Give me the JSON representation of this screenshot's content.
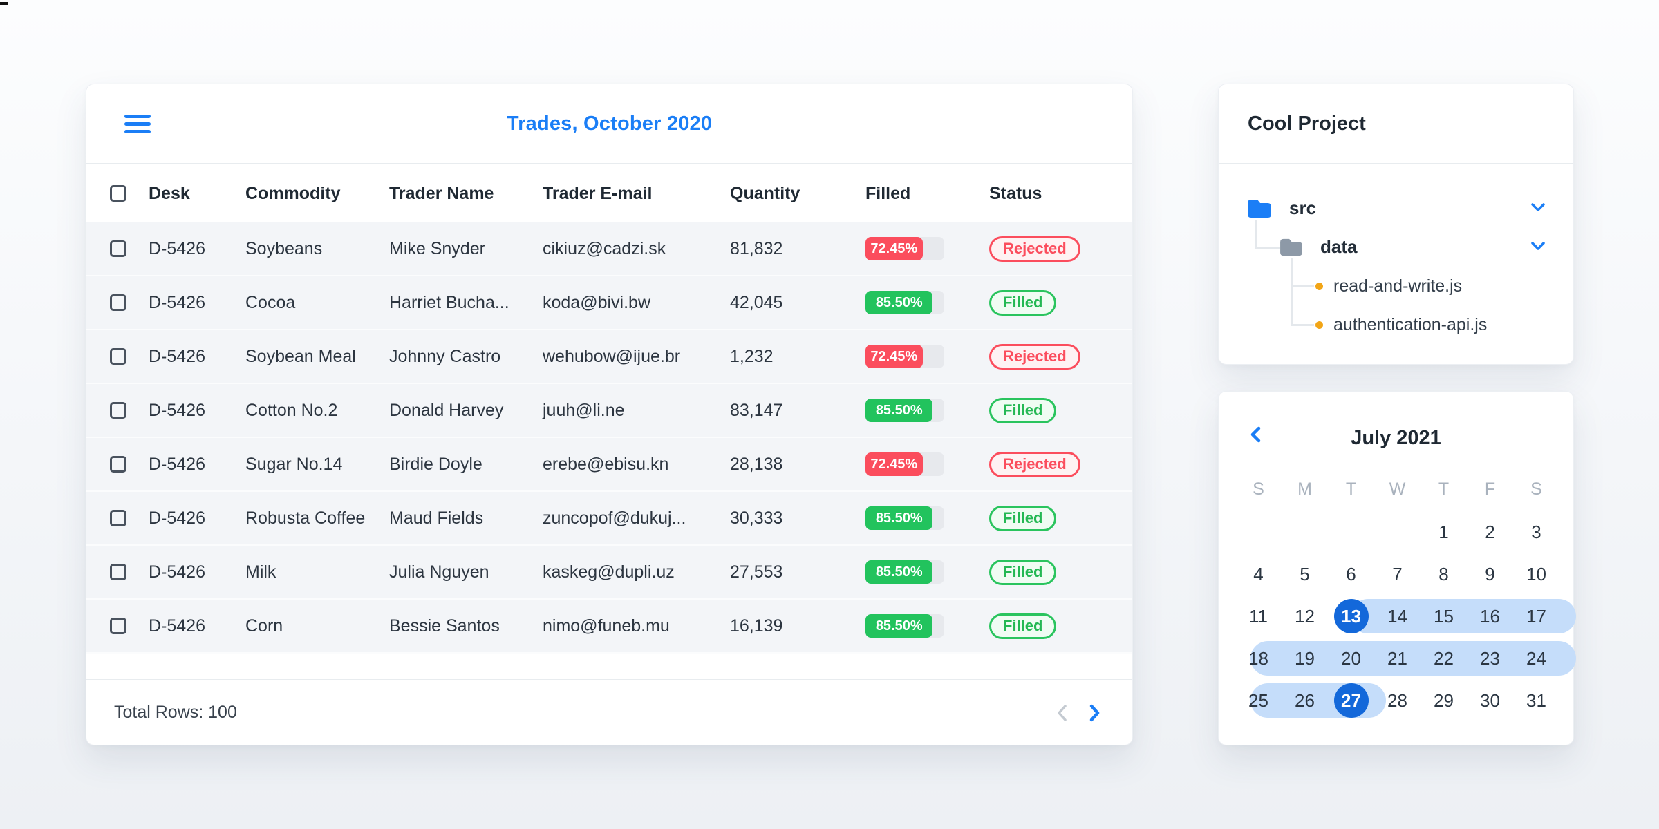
{
  "colors": {
    "accent_blue": "#1b7ef6",
    "selected_day_blue": "#1368da",
    "range_band_blue": "#c5ddfa",
    "progress_green": "#22c35d",
    "progress_red": "#fb4d5d",
    "row_background": "#f3f5f8"
  },
  "table": {
    "title": "Trades, October 2020",
    "columns": {
      "desk": "Desk",
      "commodity": "Commodity",
      "trader": "Trader Name",
      "email": "Trader E-mail",
      "quantity": "Quantity",
      "filled": "Filled",
      "status": "Status"
    },
    "rows": [
      {
        "desk": "D-5426",
        "commodity": "Soybeans",
        "trader": "Mike Snyder",
        "email": "cikiuz@cadzi.sk",
        "quantity": "81,832",
        "filled_pct": 72.45,
        "filled_label": "72.45%",
        "status": "Rejected"
      },
      {
        "desk": "D-5426",
        "commodity": "Cocoa",
        "trader": "Harriet Bucha...",
        "email": "koda@bivi.bw",
        "quantity": "42,045",
        "filled_pct": 85.5,
        "filled_label": "85.50%",
        "status": "Filled"
      },
      {
        "desk": "D-5426",
        "commodity": "Soybean Meal",
        "trader": "Johnny Castro",
        "email": "wehubow@ijue.br",
        "quantity": "1,232",
        "filled_pct": 72.45,
        "filled_label": "72.45%",
        "status": "Rejected"
      },
      {
        "desk": "D-5426",
        "commodity": "Cotton No.2",
        "trader": "Donald Harvey",
        "email": "juuh@li.ne",
        "quantity": "83,147",
        "filled_pct": 85.5,
        "filled_label": "85.50%",
        "status": "Filled"
      },
      {
        "desk": "D-5426",
        "commodity": "Sugar No.14",
        "trader": "Birdie Doyle",
        "email": "erebe@ebisu.kn",
        "quantity": "28,138",
        "filled_pct": 72.45,
        "filled_label": "72.45%",
        "status": "Rejected"
      },
      {
        "desk": "D-5426",
        "commodity": "Robusta Coffee",
        "trader": "Maud Fields",
        "email": "zuncopof@dukuj...",
        "quantity": "30,333",
        "filled_pct": 85.5,
        "filled_label": "85.50%",
        "status": "Filled"
      },
      {
        "desk": "D-5426",
        "commodity": "Milk",
        "trader": "Julia Nguyen",
        "email": "kaskeg@dupli.uz",
        "quantity": "27,553",
        "filled_pct": 85.5,
        "filled_label": "85.50%",
        "status": "Filled"
      },
      {
        "desk": "D-5426",
        "commodity": "Corn",
        "trader": "Bessie Santos",
        "email": "nimo@funeb.mu",
        "quantity": "16,139",
        "filled_pct": 85.5,
        "filled_label": "85.50%",
        "status": "Filled"
      }
    ],
    "footer": {
      "total_rows": "Total Rows: 100"
    }
  },
  "file_tree": {
    "title": "Cool Project",
    "folder_src": "src",
    "folder_data": "data",
    "file_1": "read-and-write.js",
    "file_2": "authentication-api.js"
  },
  "calendar": {
    "title": "July 2021",
    "day_headers": [
      "S",
      "M",
      "T",
      "W",
      "T",
      "F",
      "S"
    ],
    "weeks": [
      [
        "",
        "",
        "",
        "",
        "1",
        "2",
        "3"
      ],
      [
        "4",
        "5",
        "6",
        "7",
        "8",
        "9",
        "10"
      ],
      [
        "11",
        "12",
        "13",
        "14",
        "15",
        "16",
        "17"
      ],
      [
        "18",
        "19",
        "20",
        "21",
        "22",
        "23",
        "24"
      ],
      [
        "25",
        "26",
        "27",
        "28",
        "29",
        "30",
        "31"
      ]
    ],
    "range_start_day": "13",
    "range_end_day": "27"
  }
}
